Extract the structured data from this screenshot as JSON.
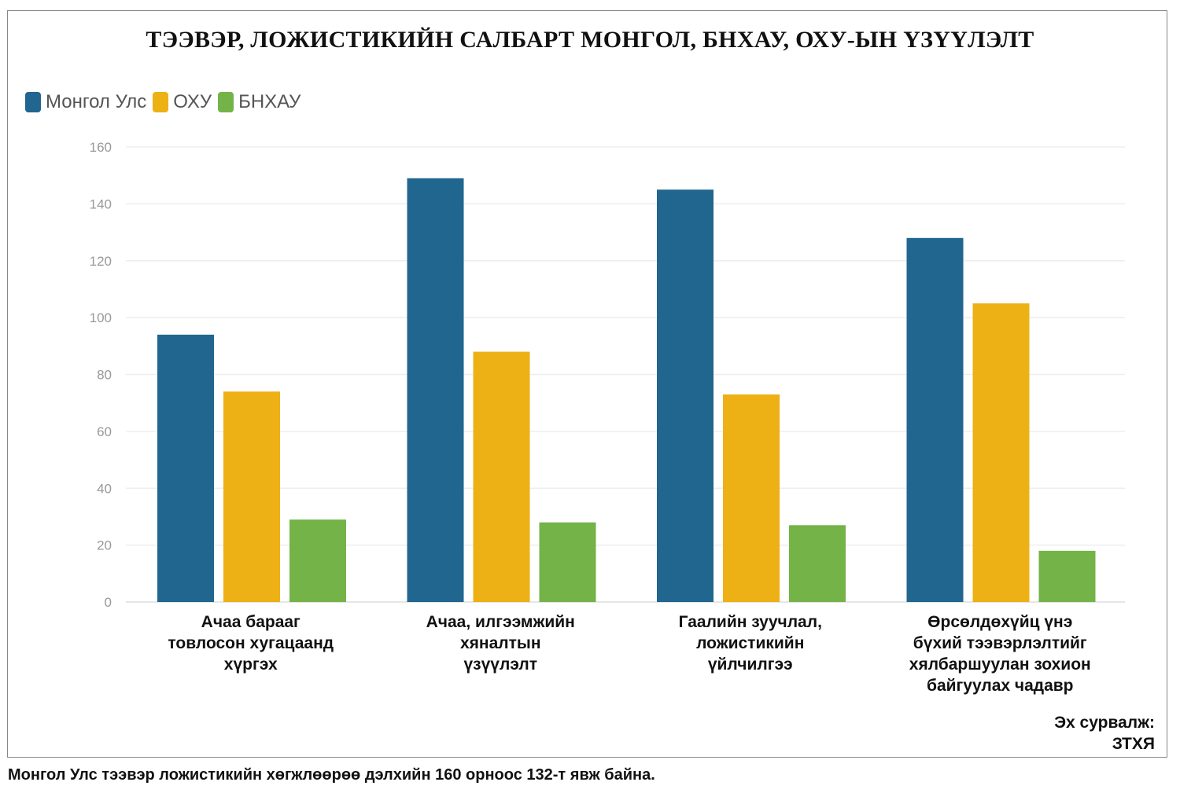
{
  "chart_data": {
    "type": "bar",
    "title": "ТЭЭВЭР, ЛОЖИСТИКИЙН САЛБАРТ МОНГОЛ, БНХАУ, ОХУ-ЫН ҮЗҮҮЛЭЛТ",
    "categories": [
      [
        "Ачаа барааг",
        "товлосон хугацаанд",
        "хүргэх"
      ],
      [
        "Ачаа, илгээмжийн",
        "хяналтын",
        "үзүүлэлт"
      ],
      [
        "Гаалийн зуучлал,",
        "ложистикийн",
        "үйлчилгээ"
      ],
      [
        "Өрсөлдөхүйц үнэ",
        "бүхий тээвэрлэлтийг",
        "хялбаршуулан зохион",
        "байгуулах чадавр"
      ]
    ],
    "series": [
      {
        "name": "Монгол Улс",
        "color": "#21668f",
        "values": [
          94,
          149,
          145,
          128
        ]
      },
      {
        "name": "ОХУ",
        "color": "#edb015",
        "values": [
          74,
          88,
          73,
          105
        ]
      },
      {
        "name": "БНХАУ",
        "color": "#74b348",
        "values": [
          29,
          28,
          27,
          18
        ]
      }
    ],
    "ylim": [
      0,
      160
    ],
    "yticks": [
      0,
      20,
      40,
      60,
      80,
      100,
      120,
      140,
      160
    ],
    "grid": true,
    "legend": "top-left",
    "xlabel": "",
    "ylabel": ""
  },
  "source": {
    "label": "Эх сурвалж:",
    "value": "ЗТХЯ"
  },
  "footer": "Монгол Улс тээвэр ложистикийн хөгжлөөрөө дэлхийн 160 орноос 132-т явж байна."
}
